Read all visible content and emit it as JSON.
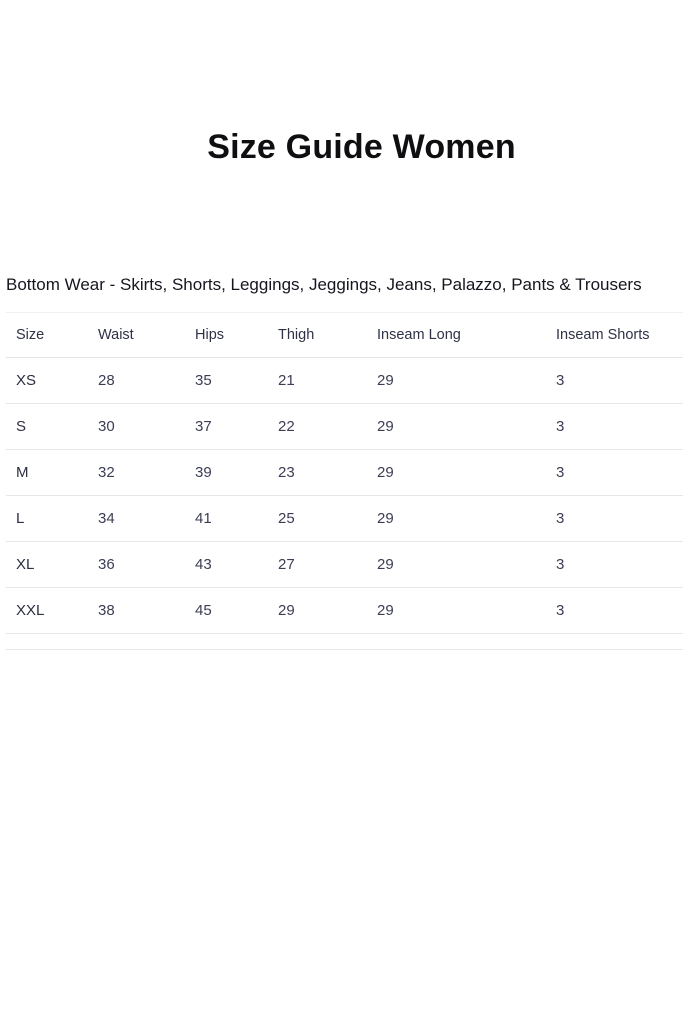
{
  "page": {
    "title": "Size Guide Women",
    "subtitle": "Bottom Wear - Skirts, Shorts, Leggings, Jeggings, Jeans, Palazzo, Pants & Trousers"
  },
  "table": {
    "columns": [
      "Size",
      "Waist",
      "Hips",
      "Thigh",
      "Inseam Long",
      "Inseam Shorts"
    ],
    "rows": [
      [
        "XS",
        "28",
        "35",
        "21",
        "29",
        "3"
      ],
      [
        "S",
        "30",
        "37",
        "22",
        "29",
        "3"
      ],
      [
        "M",
        "32",
        "39",
        "23",
        "29",
        "3"
      ],
      [
        "L",
        "34",
        "41",
        "25",
        "29",
        "3"
      ],
      [
        "XL",
        "36",
        "43",
        "27",
        "29",
        "3"
      ],
      [
        "XXL",
        "38",
        "45",
        "29",
        "29",
        "3"
      ]
    ]
  },
  "chart_data": {
    "type": "table",
    "title": "Size Guide Women",
    "subtitle": "Bottom Wear - Skirts, Shorts, Leggings, Jeggings, Jeans, Palazzo, Pants & Trousers",
    "columns": [
      "Size",
      "Waist",
      "Hips",
      "Thigh",
      "Inseam Long",
      "Inseam Shorts"
    ],
    "rows": [
      [
        "XS",
        28,
        35,
        21,
        29,
        3
      ],
      [
        "S",
        30,
        37,
        22,
        29,
        3
      ],
      [
        "M",
        32,
        39,
        23,
        29,
        3
      ],
      [
        "L",
        34,
        41,
        25,
        29,
        3
      ],
      [
        "XL",
        36,
        43,
        27,
        29,
        3
      ],
      [
        "XXL",
        38,
        45,
        29,
        29,
        3
      ]
    ]
  },
  "colors": {
    "background": "#ffffff",
    "title_text": "#0f0f12",
    "subtitle_text": "#16161f",
    "header_text": "#2f3147",
    "cell_text": "#3b3d53",
    "row_border": "#e6e6e6"
  }
}
